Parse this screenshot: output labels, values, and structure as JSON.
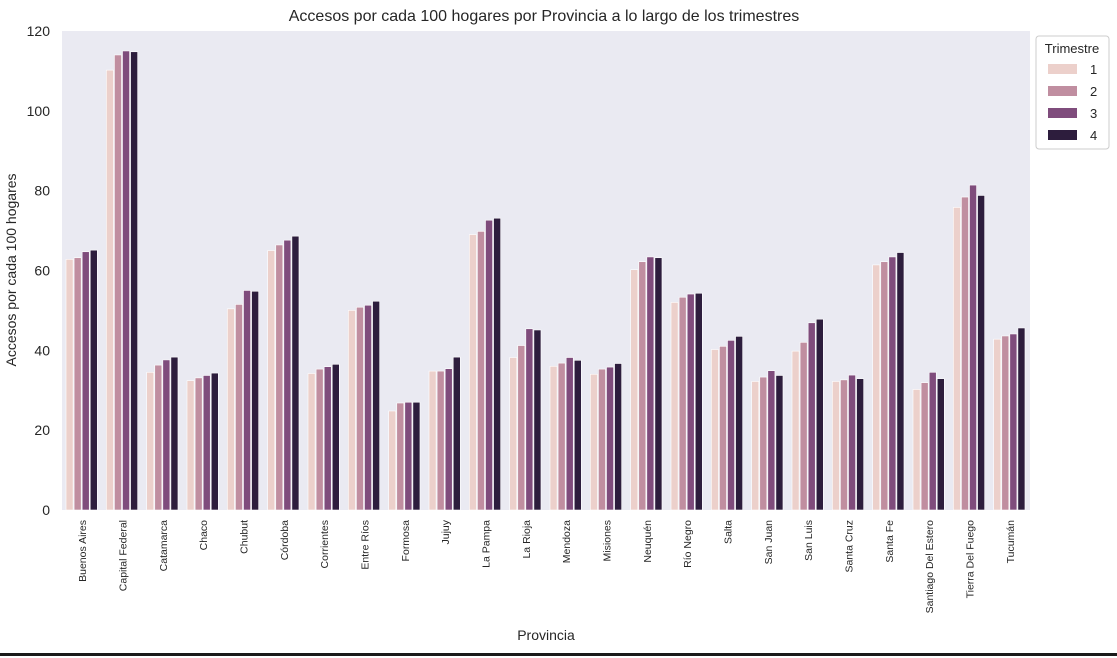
{
  "chart_data": {
    "type": "bar",
    "title": "Accesos por cada 100 hogares por Provincia a lo largo de los trimestres",
    "xlabel": "Provincia",
    "ylabel": "Accesos por cada 100 hogares",
    "ylim": [
      0,
      120
    ],
    "yticks": [
      0,
      20,
      40,
      60,
      80,
      100,
      120
    ],
    "grid": false,
    "legend_placement": "outside-top-right",
    "legend_title": "Trimestre",
    "categories": [
      "Buenos Aires",
      "Capital Federal",
      "Catamarca",
      "Chaco",
      "Chubut",
      "Córdoba",
      "Corrientes",
      "Entre Ríos",
      "Formosa",
      "Jujuy",
      "La Pampa",
      "La Rioja",
      "Mendoza",
      "Misiones",
      "Neuquén",
      "Río Negro",
      "Salta",
      "San Juan",
      "San Luis",
      "Santa Cruz",
      "Santa Fe",
      "Santiago Del Estero",
      "Tierra Del Fuego",
      "Tucumán"
    ],
    "series": [
      {
        "name": "1",
        "color": "#ecd0cb",
        "values": [
          62.8,
          110.2,
          34.5,
          32.4,
          50.4,
          65.0,
          34.2,
          50.0,
          24.8,
          34.8,
          69.0,
          38.2,
          36.0,
          34.0,
          60.2,
          52.0,
          40.2,
          32.2,
          39.8,
          32.2,
          61.4,
          30.2,
          75.8,
          42.8
        ]
      },
      {
        "name": "2",
        "color": "#c08ea0",
        "values": [
          63.2,
          114.0,
          36.3,
          33.1,
          51.5,
          66.4,
          35.3,
          50.8,
          26.8,
          34.8,
          69.8,
          41.2,
          36.8,
          35.3,
          62.2,
          53.3,
          41.0,
          33.3,
          42.0,
          32.6,
          62.2,
          31.9,
          78.4,
          43.6
        ]
      },
      {
        "name": "3",
        "color": "#7f4c7c",
        "values": [
          64.7,
          115.0,
          37.6,
          33.7,
          55.0,
          67.6,
          35.9,
          51.3,
          27.0,
          35.4,
          72.6,
          45.4,
          38.2,
          35.8,
          63.4,
          54.1,
          42.5,
          34.9,
          46.9,
          33.8,
          63.4,
          34.5,
          81.4,
          44.1
        ]
      },
      {
        "name": "4",
        "color": "#2d1d3d",
        "values": [
          65.1,
          114.8,
          38.3,
          34.3,
          54.8,
          68.6,
          36.5,
          52.3,
          27.0,
          38.3,
          73.1,
          45.1,
          37.5,
          36.7,
          63.2,
          54.3,
          43.5,
          33.7,
          47.8,
          32.9,
          64.5,
          32.9,
          78.8,
          45.6
        ]
      }
    ]
  }
}
